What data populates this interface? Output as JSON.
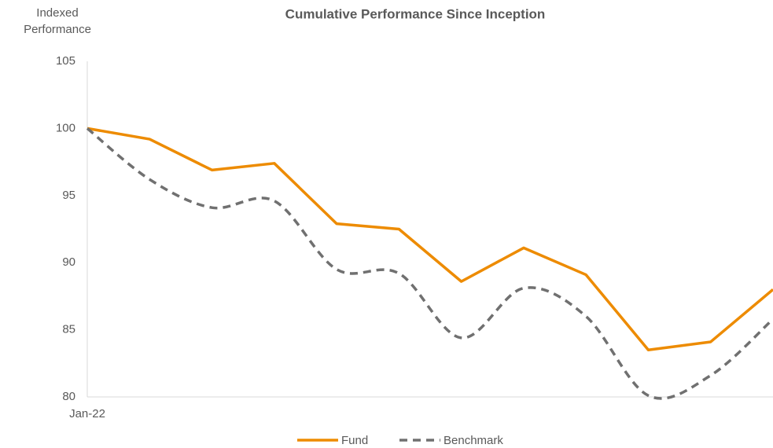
{
  "chart_data": {
    "type": "line",
    "title": "Cumulative Performance Since Inception",
    "y_label": "Indexed Performance",
    "categories": [
      "Jan-22",
      null,
      null,
      null,
      null,
      null,
      null,
      null,
      null,
      null,
      null,
      null
    ],
    "series": [
      {
        "name": "Fund",
        "color": "#ed8b00",
        "style": "solid",
        "values": [
          100,
          99.2,
          96.9,
          97.4,
          92.9,
          92.5,
          88.6,
          91.1,
          89.1,
          83.5,
          84.1,
          88.0
        ]
      },
      {
        "name": "Benchmark",
        "color": "#707070",
        "style": "dashed",
        "values": [
          100,
          96.2,
          94.1,
          94.6,
          89.5,
          89.2,
          84.4,
          88.1,
          86.0,
          80.1,
          81.6,
          85.8
        ]
      }
    ],
    "ylim": [
      80,
      105
    ],
    "yticks": [
      80,
      85,
      90,
      95,
      100,
      105
    ],
    "grid": false,
    "legend": "bottom"
  }
}
